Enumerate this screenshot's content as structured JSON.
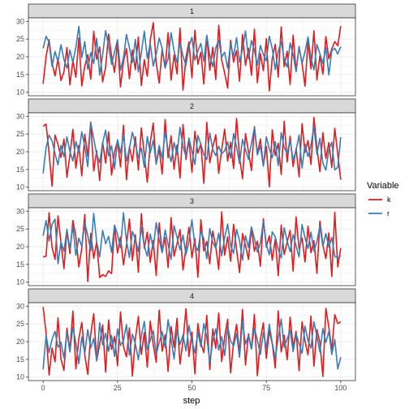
{
  "chart_data": {
    "type": "line",
    "facet_by": "group",
    "facets": [
      "1",
      "2",
      "3",
      "4"
    ],
    "xlabel": "step",
    "ylabel": "",
    "xlim": [
      0,
      100
    ],
    "ylim": [
      10,
      30
    ],
    "x_ticks": [
      0,
      25,
      50,
      75,
      100
    ],
    "y_ticks": [
      10,
      15,
      20,
      25,
      30
    ],
    "grid": true,
    "legend": {
      "title": "Variable",
      "position": "right",
      "items": [
        "k",
        "r"
      ]
    },
    "colors": {
      "k": "#e41a1c",
      "r": "#377eb8"
    },
    "x": [
      0,
      1,
      2,
      3,
      4,
      5,
      6,
      7,
      8,
      9,
      10,
      11,
      12,
      13,
      14,
      15,
      16,
      17,
      18,
      19,
      20,
      21,
      22,
      23,
      24,
      25,
      26,
      27,
      28,
      29,
      30,
      31,
      32,
      33,
      34,
      35,
      36,
      37,
      38,
      39,
      40,
      41,
      42,
      43,
      44,
      45,
      46,
      47,
      48,
      49,
      50,
      51,
      52,
      53,
      54,
      55,
      56,
      57,
      58,
      59,
      60,
      61,
      62,
      63,
      64,
      65,
      66,
      67,
      68,
      69,
      70,
      71,
      72,
      73,
      74,
      75,
      76,
      77,
      78,
      79,
      80,
      81,
      82,
      83,
      84,
      85,
      86,
      87,
      88,
      89,
      90,
      91,
      92,
      93,
      94,
      95,
      96,
      97,
      98,
      99,
      100
    ],
    "panels": [
      {
        "facet": "1",
        "series": [
          {
            "name": "k",
            "values": [
              12.4,
              20.1,
              24.8,
              18.2,
              14.6,
              19.5,
              13.3,
              15.8,
              22.6,
              12.1,
              18.9,
              14.2,
              25.3,
              11.8,
              17.4,
              20.6,
              13.7,
              27.2,
              19.3,
              22.8,
              12.9,
              17.1,
              26.4,
              20.2,
              15.6,
              24.1,
              11.5,
              18.7,
              22.3,
              13.8,
              21.9,
              16.4,
              25.6,
              11.9,
              19.2,
              14.5,
              24.7,
              29.6,
              18.3,
              12.6,
              22.1,
              16.8,
              26.8,
              13.4,
              20.5,
              15.2,
              28.1,
              10.6,
              19.8,
              24.2,
              14.1,
              27.5,
              17.9,
              21.3,
              12.3,
              25.9,
              16.2,
              22.7,
              13.6,
              28.9,
              19.1,
              15.4,
              11.2,
              24.6,
              18.5,
              21.8,
              13.1,
              26.3,
              17.6,
              22.4,
              14.8,
              27.8,
              12.7,
              20.9,
              16.1,
              25.1,
              10.4,
              19.6,
              23.5,
              14.3,
              28.4,
              17.2,
              21.6,
              12.2,
              26.1,
              15.9,
              22.9,
              18.1,
              11.7,
              24.5,
              16.6,
              27.3,
              13.5,
              20.3,
              15.1,
              25.7,
              19.4,
              22.2,
              24.3,
              23.1,
              28.7
            ]
          },
          {
            "name": "r",
            "values": [
              22.4,
              25.8,
              24.1,
              17.3,
              21.5,
              18.6,
              23.4,
              19.2,
              16.8,
              21.9,
              18.4,
              22.7,
              28.6,
              19.8,
              24.3,
              16.5,
              21.2,
              18.1,
              25.2,
              14.8,
              20.6,
              27.4,
              23.1,
              17.9,
              21.4,
              24.8,
              16.2,
              19.7,
              26.3,
              22.6,
              18.4,
              24.9,
              15.7,
              21.1,
              27.2,
              19.6,
              23.7,
              17.4,
              20.8,
              25.3,
              22.4,
              16.9,
              19.5,
              26.8,
              21.7,
              18.3,
              24.1,
              20.2,
              17.6,
              22.9,
              25.5,
              19.1,
              21.6,
              23.8,
              18.7,
              26.1,
              20.4,
              17.2,
              22.5,
              24.7,
              19.9,
              21.3,
              16.8,
              23.6,
              20.1,
              25.4,
              18.5,
              22.1,
              27.3,
              19.4,
              24.6,
              21.8,
              17.7,
              23.2,
              20.6,
              18.9,
              25.8,
              22.3,
              16.4,
              21.5,
              24.2,
              19.3,
              17.1,
              23.9,
              20.7,
              15.8,
              22.8,
              18.2,
              21.4,
              25.6,
              19.7,
              16.3,
              23.5,
              20.9,
              18.1,
              22.6,
              14.9,
              21.7,
              22.4,
              20.8,
              22.9
            ]
          }
        ]
      },
      {
        "facet": "2",
        "series": [
          {
            "name": "k",
            "values": [
              27.2,
              27.8,
              19.6,
              10.3,
              24.7,
              22.1,
              18.4,
              23.6,
              12.8,
              19.1,
              26.3,
              15.4,
              21.8,
              13.2,
              24.9,
              18.7,
              28.4,
              14.6,
              20.3,
              11.9,
              22.7,
              16.8,
              25.6,
              13.4,
              19.9,
              23.1,
              15.7,
              27.5,
              12.1,
              21.4,
              17.3,
              24.2,
              14.9,
              26.7,
              19.2,
              11.4,
              22.6,
              28.1,
              16.5,
              20.8,
              13.7,
              29.1,
              18.3,
              24.5,
              15.1,
              21.9,
              12.6,
              27.7,
              17.8,
              23.4,
              14.2,
              25.8,
              19.6,
              22.3,
              11.1,
              28.3,
              16.9,
              21.2,
              24.8,
              13.9,
              20.6,
              26.4,
              17.4,
              22.7,
              15.3,
              29.4,
              18.6,
              12.4,
              25.1,
              20.1,
              14.7,
              27.1,
              19.4,
              23.6,
              16.1,
              21.5,
              10.1,
              26.2,
              18.9,
              22.4,
              13.6,
              28.6,
              17.1,
              24.4,
              15.8,
              20.9,
              12.9,
              27.9,
              19.8,
              23.2,
              16.4,
              29.7,
              21.1,
              14.4,
              25.4,
              18.1,
              22.6,
              15.6,
              26.6,
              19.3,
              12.1
            ]
          },
          {
            "name": "r",
            "values": [
              13.9,
              21.2,
              24.7,
              23.1,
              19.5,
              16.3,
              21.8,
              18.6,
              24.2,
              20.1,
              17.4,
              22.9,
              19.8,
              25.6,
              21.4,
              15.8,
              28.2,
              23.7,
              19.3,
              16.9,
              22.5,
              26.1,
              18.8,
              21.7,
              15.2,
              23.4,
              19.6,
              24.8,
              17.3,
              20.9,
              25.5,
              22.2,
              18.4,
              21.1,
              15.6,
              24.3,
              19.7,
              23.2,
              16.6,
              21.8,
              18.1,
              25.7,
              20.4,
              17.2,
              22.6,
              19.3,
              26.9,
              21.5,
              18.7,
              23.9,
              20.1,
              16.4,
              24.6,
              22.1,
              19.2,
              17.8,
              25.3,
              20.7,
              18.9,
              21.6,
              19.4,
              20.3,
              22.8,
              18.2,
              25.1,
              21.3,
              16.7,
              23.5,
              20.6,
              17.9,
              22.4,
              26.8,
              19.1,
              21.7,
              15.9,
              24.2,
              20.8,
              18.3,
              22.9,
              16.1,
              25.4,
              21.2,
              19.5,
              23.3,
              17.6,
              20.4,
              24.7,
              15.4,
              22.1,
              18.6,
              21.9,
              27.1,
              19.3,
              23.8,
              16.8,
              14.8,
              20.5,
              22.7,
              14.9,
              15.6,
              24.1
            ]
          }
        ]
      },
      {
        "facet": "3",
        "series": [
          {
            "name": "k",
            "values": [
              17.1,
              17.3,
              29.6,
              19.8,
              16.4,
              28.7,
              21.2,
              13.8,
              24.6,
              18.1,
              27.4,
              22.9,
              14.3,
              19.6,
              29.1,
              10.2,
              23.8,
              16.7,
              21.4,
              11.3,
              12.1,
              11.6,
              13.2,
              12.4,
              25.9,
              18.2,
              22.7,
              14.9,
              20.3,
              27.8,
              16.1,
              23.4,
              12.8,
              29.3,
              19.5,
              24.1,
              15.6,
              21.8,
              11.9,
              26.7,
              18.4,
              22.6,
              14.1,
              28.2,
              17.3,
              20.9,
              24.8,
              13.4,
              19.7,
              25.5,
              16.9,
              22.3,
              11.4,
              27.6,
              18.8,
              21.5,
              15.2,
              24.4,
              20.1,
              13.6,
              29.8,
              17.6,
              22.8,
              15.9,
              26.3,
              19.2,
              12.7,
              23.7,
              20.4,
              16.4,
              25.2,
              18.7,
              21.6,
              14.5,
              27.9,
              19.9,
              23.1,
              16.2,
              22.1,
              11.8,
              26.1,
              17.8,
              21.3,
              24.6,
              13.1,
              28.4,
              19.4,
              22.5,
              15.7,
              25.8,
              18.3,
              21.7,
              12.5,
              27.2,
              20.6,
              16.6,
              23.9,
              11.6,
              29.7,
              14.3,
              19.6
            ]
          },
          {
            "name": "r",
            "values": [
              23.1,
              27.4,
              21.6,
              26.3,
              27.8,
              15.2,
              21.4,
              18.7,
              24.9,
              19.3,
              25.8,
              17.6,
              22.4,
              20.1,
              26.7,
              23.2,
              18.8,
              29.4,
              21.3,
              17.1,
              24.6,
              20.8,
              22.9,
              18.4,
              26.1,
              23.5,
              19.7,
              29.6,
              21.8,
              16.9,
              24.3,
              22.1,
              18.6,
              25.4,
              20.2,
              17.3,
              23.6,
              19.4,
              26.8,
              21.9,
              18.3,
              24.7,
              20.6,
              16.4,
              25.9,
              22.7,
              19.1,
              23.3,
              17.8,
              21.5,
              27.6,
              20.3,
              18.9,
              24.4,
              22.2,
              16.6,
              25.1,
              21.2,
              19.6,
              23.8,
              17.4,
              22.6,
              26.4,
              20.4,
              18.1,
              24.9,
              21.7,
              16.2,
              23.1,
              19.8,
              25.6,
              22.3,
              18.5,
              21.1,
              27.2,
              20.7,
              17.7,
              24.2,
              22.8,
              19.3,
              16.8,
              25.3,
              21.6,
              18.6,
              23.4,
              20.2,
              17.1,
              26.2,
              22.5,
              19.5,
              24.1,
              18.8,
              21.4,
              25.8,
              20.1,
              23.7,
              19.9,
              22.6,
              17.3,
              16.8,
              17.4
            ]
          }
        ]
      },
      {
        "facet": "4",
        "series": [
          {
            "name": "k",
            "values": [
              29.8,
              22.4,
              10.6,
              18.2,
              14.3,
              26.7,
              15.1,
              11.9,
              23.8,
              17.4,
              28.6,
              12.3,
              20.9,
              25.4,
              16.2,
              10.8,
              22.1,
              27.9,
              14.6,
              19.3,
              24.7,
              11.4,
              26.1,
              17.8,
              21.5,
              13.2,
              28.4,
              18.6,
              15.7,
              23.9,
              10.3,
              20.8,
              27.1,
              16.4,
              22.6,
              12.8,
              25.8,
              19.1,
              14.2,
              28.9,
              17.3,
              21.9,
              11.6,
              24.3,
              18.4,
              26.6,
              13.7,
              20.2,
              29.3,
              15.8,
              22.7,
              10.9,
              25.1,
              19.6,
              16.9,
              27.4,
              12.1,
              23.6,
              18.1,
              28.1,
              14.4,
              21.3,
              26.3,
              11.2,
              19.8,
              24.9,
              16.6,
              29.1,
              13.4,
              22.2,
              17.9,
              27.7,
              10.4,
              20.6,
              25.3,
              15.3,
              23.1,
              19.4,
              12.6,
              28.7,
              17.1,
              21.8,
              14.9,
              26.9,
              18.3,
              22.9,
              11.8,
              25.6,
              20.1,
              16.3,
              27.2,
              13.1,
              23.4,
              19.7,
              10.2,
              29.4,
              24.1,
              17.6,
              27.6,
              25.1,
              25.6
            ]
          },
          {
            "name": "r",
            "values": [
              12.2,
              21.8,
              16.9,
              20.7,
              22.9,
              18.4,
              19.8,
              15.4,
              22.6,
              17.1,
              24.2,
              19.6,
              13.8,
              21.3,
              16.7,
              23.4,
              18.2,
              20.9,
              14.6,
              25.3,
              19.1,
              22.4,
              17.3,
              21.7,
              15.8,
              23.6,
              18.9,
              20.3,
              24.8,
              16.2,
              22.1,
              19.4,
              14.9,
              21.6,
              25.7,
              17.8,
              20.4,
              23.1,
              16.5,
              19.7,
              22.8,
              18.3,
              26.2,
              20.6,
              15.1,
              23.3,
              19.2,
              21.9,
              17.4,
              24.6,
              20.1,
              16.8,
              22.7,
              18.6,
              25.1,
              21.2,
              14.2,
              19.9,
              23.6,
              17.6,
              21.4,
              16.1,
              24.3,
              20.2,
              18.8,
              22.3,
              15.6,
              25.8,
              19.3,
              21.7,
              17.9,
              23.8,
              20.5,
              16.4,
              22.6,
              18.1,
              24.9,
              19.6,
              15.3,
              21.1,
              26.4,
              18.4,
              20.8,
              23.2,
              17.2,
              22.1,
              19.5,
              16.7,
              24.4,
              20.3,
              18.2,
              25.6,
              21.5,
              17.1,
              23.7,
              19.8,
              22.9,
              16.4,
              20.6,
              12.3,
              15.6
            ]
          }
        ]
      }
    ]
  }
}
